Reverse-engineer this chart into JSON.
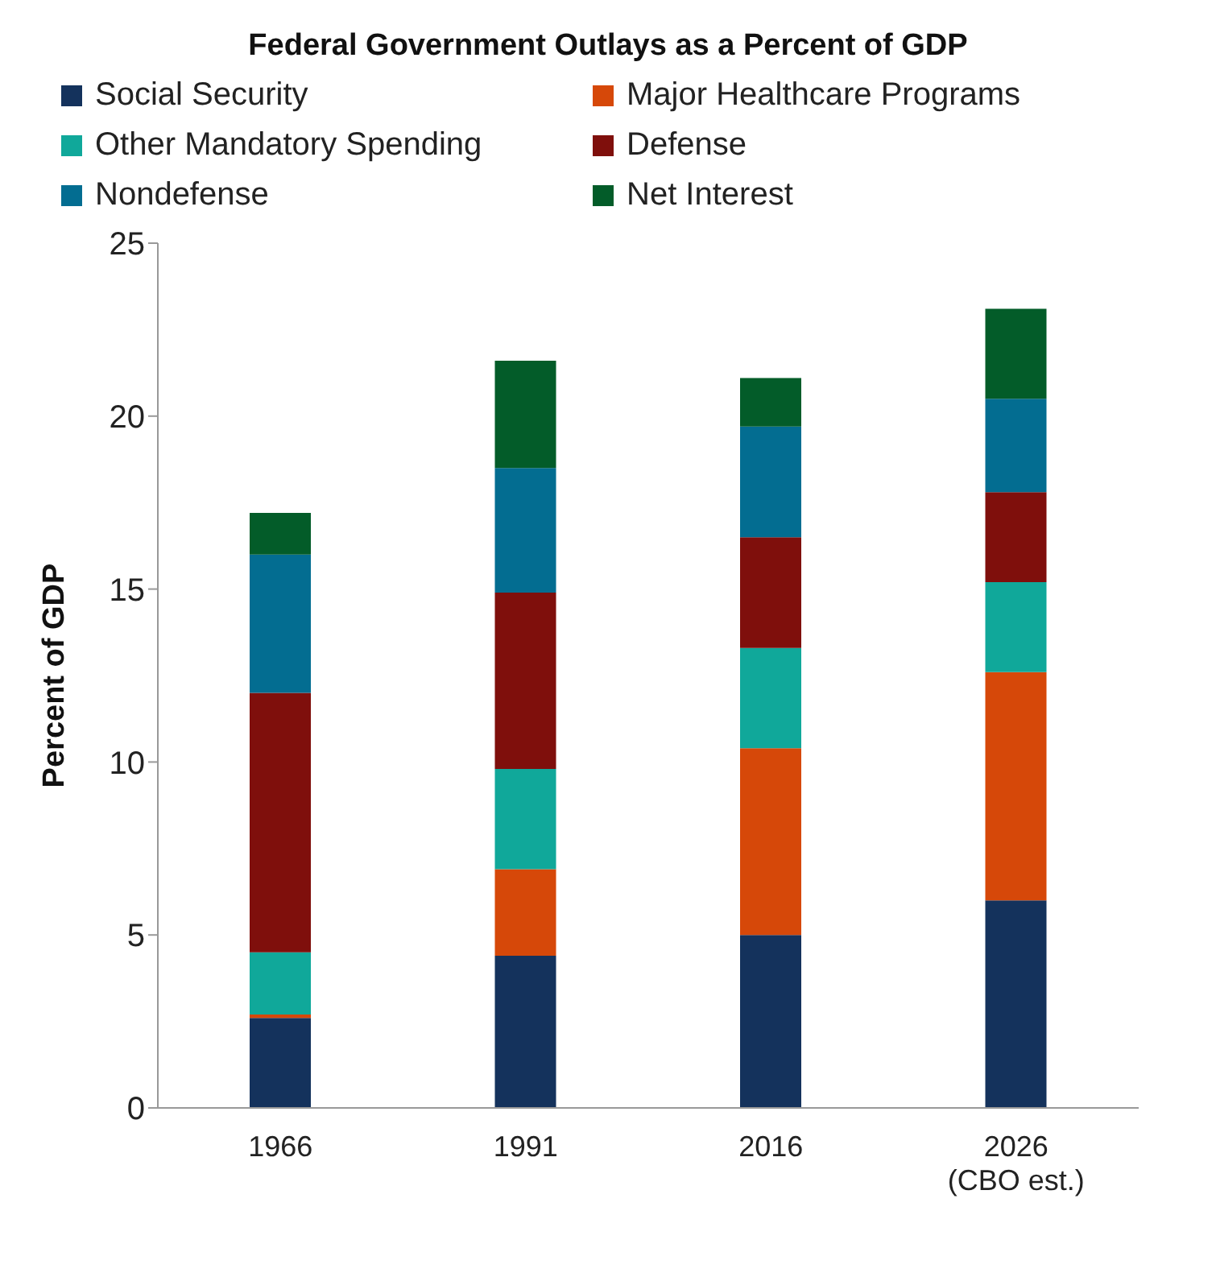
{
  "chart_data": {
    "type": "bar",
    "title": "Federal Government Outlays as a Percent of GDP",
    "ylabel": "Percent of GDP",
    "categories": [
      "1966",
      "1991",
      "2016",
      "2026 (CBO est.)"
    ],
    "stacked": true,
    "legend": "top",
    "ylim": [
      0,
      25
    ],
    "yticks": [
      0,
      5,
      10,
      15,
      20,
      25
    ],
    "series": [
      {
        "name": "Social Security",
        "color": "#14325c",
        "values": [
          2.6,
          4.4,
          5.0,
          6.0
        ]
      },
      {
        "name": "Major Healthcare Programs",
        "color": "#d64809",
        "values": [
          0.1,
          2.5,
          5.4,
          6.6
        ]
      },
      {
        "name": "Other Mandatory Spending",
        "color": "#10a89a",
        "values": [
          1.8,
          2.9,
          2.9,
          2.6
        ]
      },
      {
        "name": "Defense",
        "color": "#7f0f0c",
        "values": [
          7.5,
          5.1,
          3.2,
          2.6
        ]
      },
      {
        "name": "Nondefense",
        "color": "#036d91",
        "values": [
          4.0,
          3.6,
          3.2,
          2.7
        ]
      },
      {
        "name": "Net Interest",
        "color": "#035c29",
        "values": [
          1.2,
          3.1,
          1.4,
          2.6
        ]
      }
    ]
  }
}
